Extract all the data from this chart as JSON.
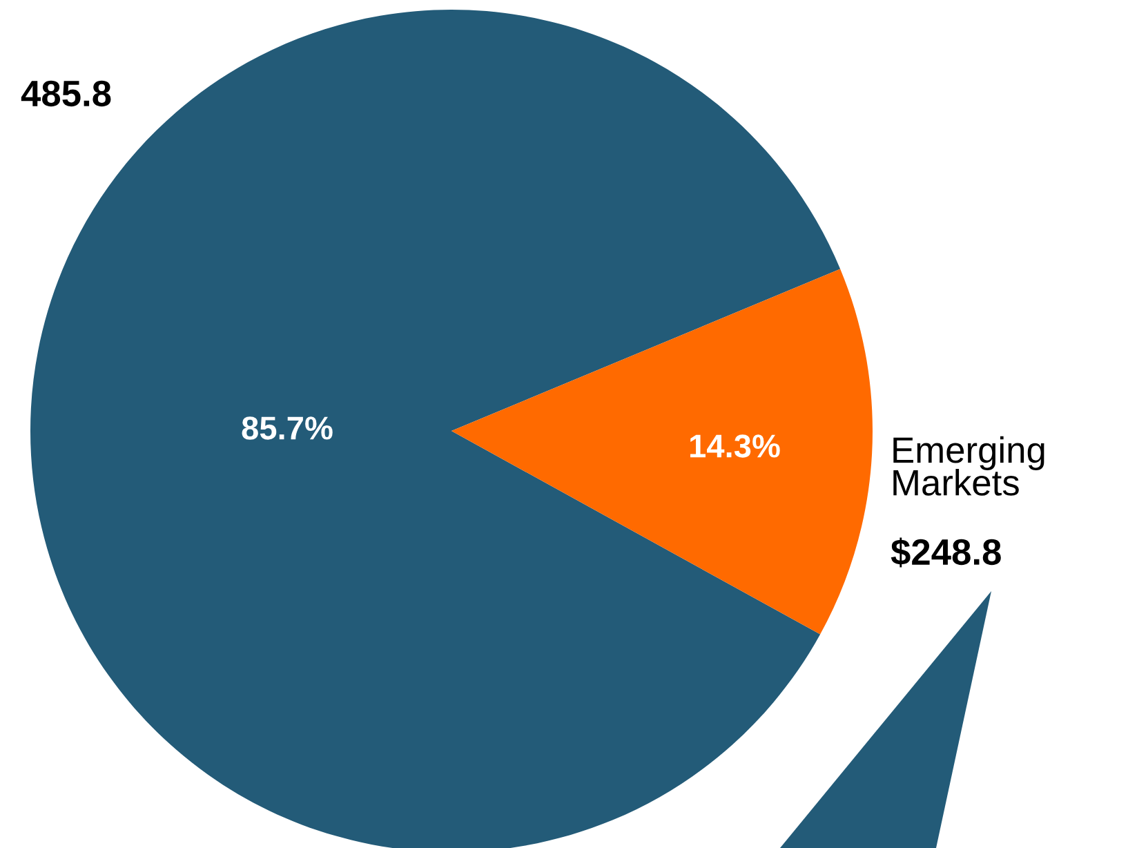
{
  "chart_data": {
    "type": "pie",
    "categories": [
      null,
      "Emerging Markets"
    ],
    "values": [
      85.7,
      14.3
    ],
    "colors": [
      "#235b78",
      "#ff6a00"
    ],
    "value_labels": [
      "85.7%",
      "14.3%"
    ],
    "annotations": [
      "485.8",
      "$248.8"
    ]
  }
}
